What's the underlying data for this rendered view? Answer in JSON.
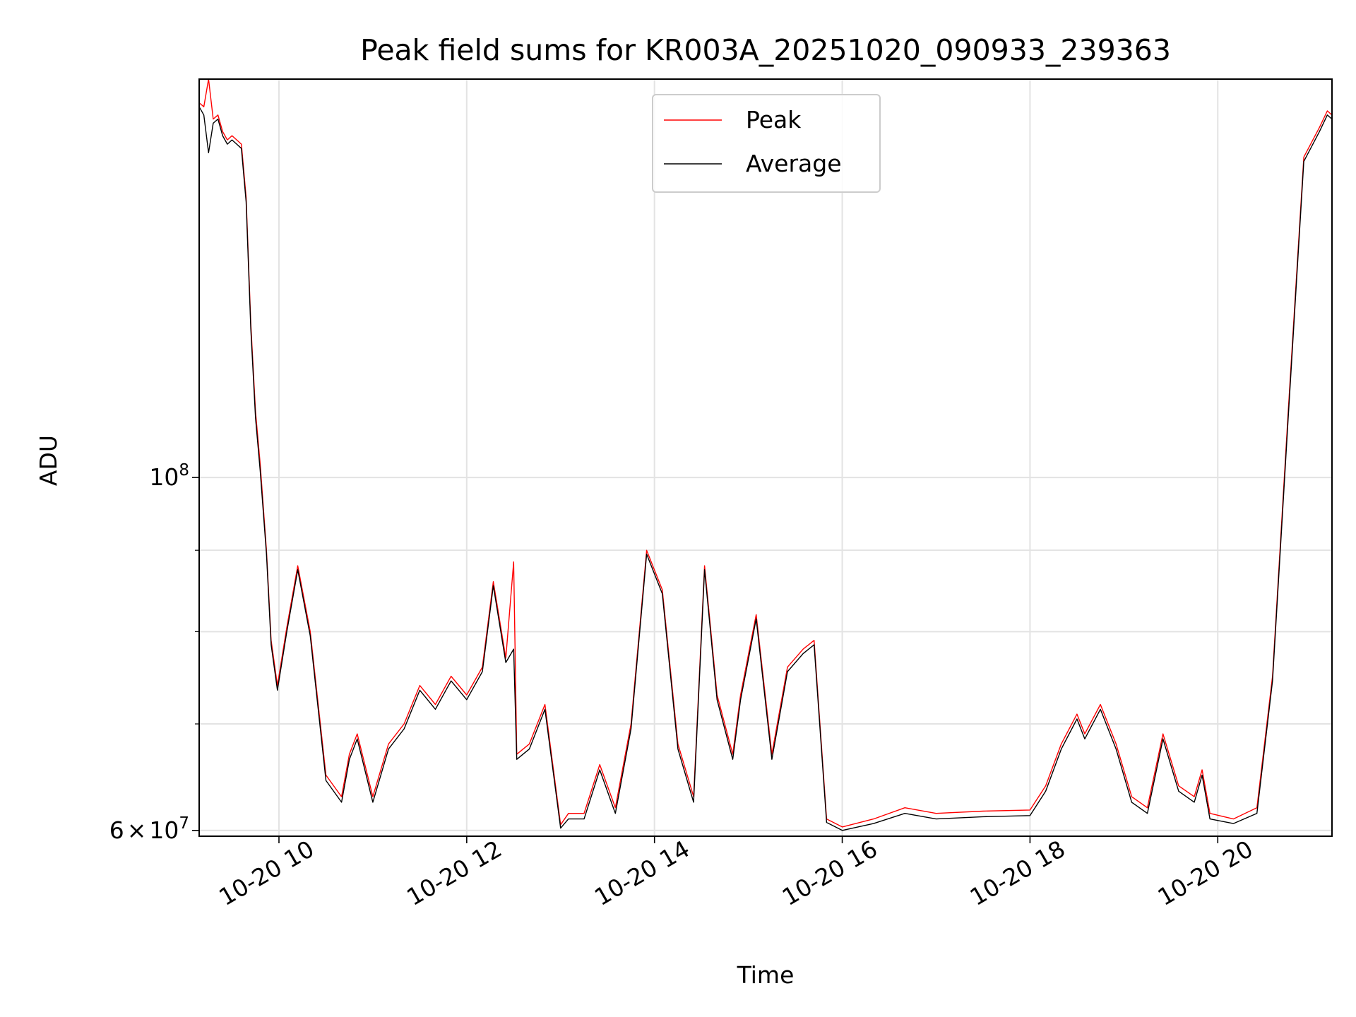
{
  "chart_data": {
    "type": "line",
    "title": "Peak field sums for KR003A_20251020_090933_239363",
    "xlabel": "Time",
    "ylabel": "ADU",
    "yscale": "log",
    "ylim": [
      59500000,
      178000000
    ],
    "xlim": [
      "2025-10-20 09:09",
      "2025-10-20 21:13"
    ],
    "grid": true,
    "legend_position": "top-center",
    "x_ticks": [
      {
        "t": "2025-10-20 10:00",
        "label": "10-20 10"
      },
      {
        "t": "2025-10-20 12:00",
        "label": "10-20 12"
      },
      {
        "t": "2025-10-20 14:00",
        "label": "10-20 14"
      },
      {
        "t": "2025-10-20 16:00",
        "label": "10-20 16"
      },
      {
        "t": "2025-10-20 18:00",
        "label": "10-20 18"
      },
      {
        "t": "2025-10-20 20:00",
        "label": "10-20 20"
      }
    ],
    "y_ticks_major": [
      {
        "value": 100000000,
        "base": "10",
        "exp": "8"
      },
      {
        "value": 60000000,
        "mant": "6",
        "times": "×",
        "base": "10",
        "exp": "7"
      }
    ],
    "y_ticks_minor": [
      60000000,
      70000000,
      80000000,
      90000000
    ],
    "x": [
      "2025-10-20 09:09",
      "2025-10-20 09:12",
      "2025-10-20 09:15",
      "2025-10-20 09:18",
      "2025-10-20 09:21",
      "2025-10-20 09:24",
      "2025-10-20 09:27",
      "2025-10-20 09:30",
      "2025-10-20 09:33",
      "2025-10-20 09:36",
      "2025-10-20 09:39",
      "2025-10-20 09:42",
      "2025-10-20 09:45",
      "2025-10-20 09:48",
      "2025-10-20 09:52",
      "2025-10-20 09:55",
      "2025-10-20 09:59",
      "2025-10-20 10:05",
      "2025-10-20 10:12",
      "2025-10-20 10:20",
      "2025-10-20 10:30",
      "2025-10-20 10:40",
      "2025-10-20 10:45",
      "2025-10-20 10:50",
      "2025-10-20 11:00",
      "2025-10-20 11:10",
      "2025-10-20 11:20",
      "2025-10-20 11:30",
      "2025-10-20 11:40",
      "2025-10-20 11:50",
      "2025-10-20 12:00",
      "2025-10-20 12:10",
      "2025-10-20 12:17",
      "2025-10-20 12:25",
      "2025-10-20 12:30",
      "2025-10-20 12:32",
      "2025-10-20 12:40",
      "2025-10-20 12:50",
      "2025-10-20 13:00",
      "2025-10-20 13:05",
      "2025-10-20 13:15",
      "2025-10-20 13:25",
      "2025-10-20 13:35",
      "2025-10-20 13:45",
      "2025-10-20 13:55",
      "2025-10-20 14:05",
      "2025-10-20 14:15",
      "2025-10-20 14:25",
      "2025-10-20 14:32",
      "2025-10-20 14:40",
      "2025-10-20 14:50",
      "2025-10-20 14:55",
      "2025-10-20 15:05",
      "2025-10-20 15:15",
      "2025-10-20 15:25",
      "2025-10-20 15:35",
      "2025-10-20 15:42",
      "2025-10-20 15:50",
      "2025-10-20 16:00",
      "2025-10-20 16:20",
      "2025-10-20 16:40",
      "2025-10-20 17:00",
      "2025-10-20 17:30",
      "2025-10-20 18:00",
      "2025-10-20 18:10",
      "2025-10-20 18:20",
      "2025-10-20 18:30",
      "2025-10-20 18:35",
      "2025-10-20 18:45",
      "2025-10-20 18:55",
      "2025-10-20 19:05",
      "2025-10-20 19:15",
      "2025-10-20 19:25",
      "2025-10-20 19:35",
      "2025-10-20 19:45",
      "2025-10-20 19:50",
      "2025-10-20 19:55",
      "2025-10-20 20:10",
      "2025-10-20 20:25",
      "2025-10-20 20:35",
      "2025-10-20 20:45",
      "2025-10-20 20:55",
      "2025-10-20 21:05",
      "2025-10-20 21:10",
      "2025-10-20 21:13"
    ],
    "series": [
      {
        "name": "Peak",
        "color": "#ff0000",
        "values": [
          172000000,
          171000000,
          178000000,
          168000000,
          169000000,
          165000000,
          163000000,
          164000000,
          163000000,
          162000000,
          150000000,
          125000000,
          110000000,
          102000000,
          90000000,
          79000000,
          74000000,
          80500000,
          88000000,
          80000000,
          65000000,
          63000000,
          67000000,
          69000000,
          63000000,
          68000000,
          70000000,
          74000000,
          72000000,
          75000000,
          73000000,
          76000000,
          86000000,
          77000000,
          88500000,
          67000000,
          68000000,
          72000000,
          60500000,
          61500000,
          61500000,
          66000000,
          62000000,
          70000000,
          90000000,
          85000000,
          68000000,
          63000000,
          88000000,
          73000000,
          67000000,
          73000000,
          82000000,
          67000000,
          76000000,
          78000000,
          79000000,
          61000000,
          60300000,
          61000000,
          62000000,
          61500000,
          61700000,
          61800000,
          64000000,
          68000000,
          71000000,
          69000000,
          72000000,
          68000000,
          63000000,
          62000000,
          69000000,
          64000000,
          63000000,
          65500000,
          61500000,
          61000000,
          62000000,
          75000000,
          110000000,
          159000000,
          166000000,
          170000000,
          169000000
        ]
      },
      {
        "name": "Average",
        "color": "#000000",
        "values": [
          171000000,
          169000000,
          160000000,
          167000000,
          168000000,
          164000000,
          162000000,
          163000000,
          162000000,
          161000000,
          149000000,
          124000000,
          109000000,
          101000000,
          89500000,
          78500000,
          73500000,
          80000000,
          87500000,
          79500000,
          64500000,
          62500000,
          66500000,
          68500000,
          62500000,
          67500000,
          69500000,
          73500000,
          71500000,
          74500000,
          72500000,
          75500000,
          85500000,
          76500000,
          78000000,
          66500000,
          67500000,
          71500000,
          60200000,
          61000000,
          61000000,
          65500000,
          61500000,
          69500000,
          89500000,
          84500000,
          67500000,
          62500000,
          87500000,
          72500000,
          66500000,
          72500000,
          81500000,
          66500000,
          75500000,
          77500000,
          78500000,
          60700000,
          60000000,
          60600000,
          61500000,
          61000000,
          61200000,
          61300000,
          63500000,
          67500000,
          70500000,
          68500000,
          71500000,
          67500000,
          62500000,
          61500000,
          68500000,
          63500000,
          62500000,
          65000000,
          61000000,
          60600000,
          61500000,
          74500000,
          109000000,
          158000000,
          165000000,
          169000000,
          168000000
        ]
      }
    ]
  }
}
